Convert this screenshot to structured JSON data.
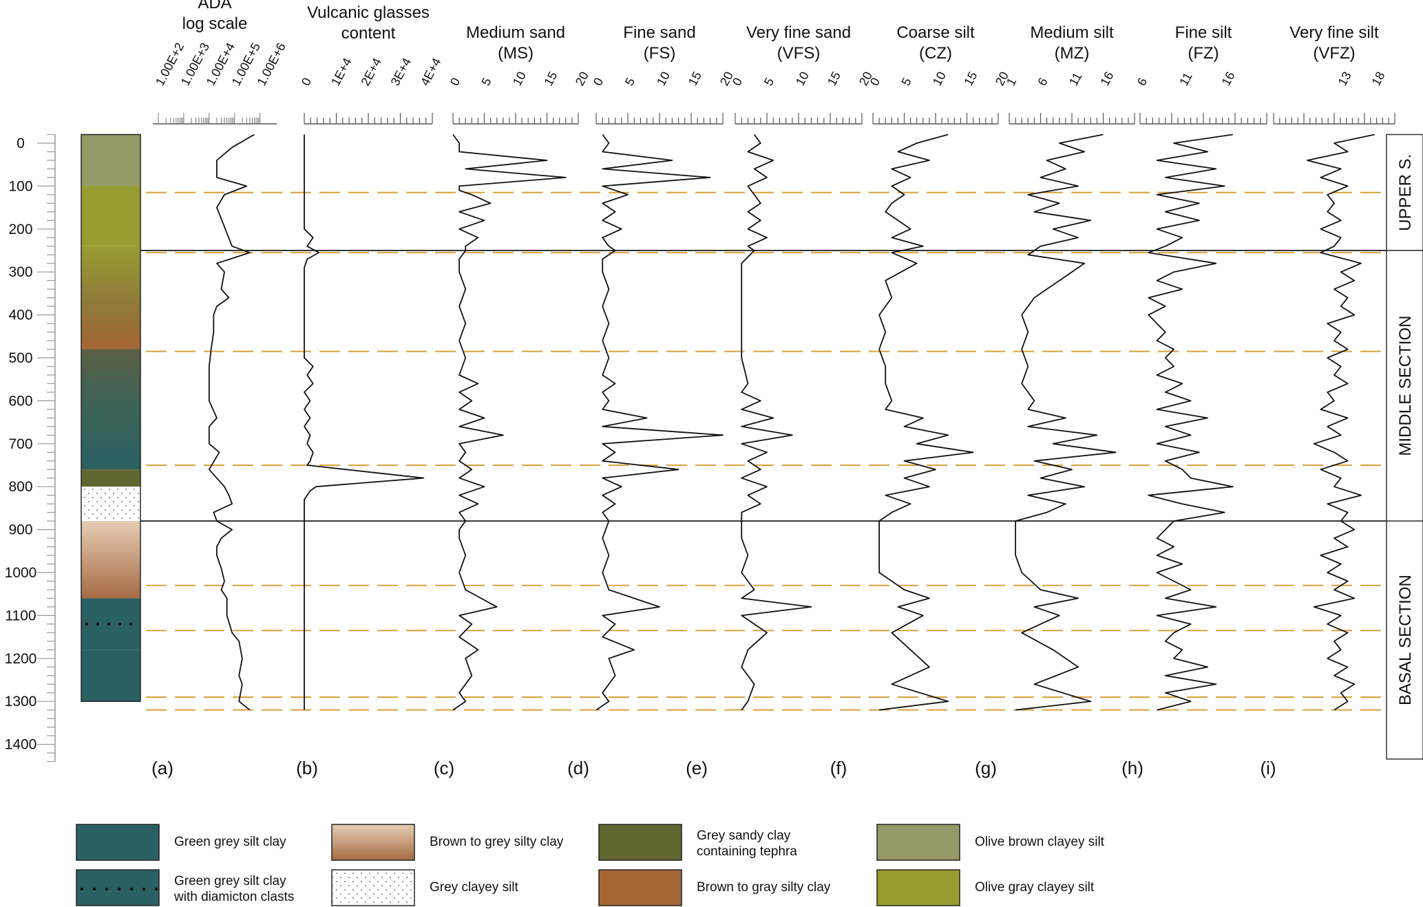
{
  "colors": {
    "green_grey": "#2b6063",
    "brown_grey_top": "#e6cdb4",
    "brown_grey_bottom": "#a66b45",
    "grey_sandy_tephra": "#646632",
    "brown_gray": "#a46534",
    "olive_brown": "#979968",
    "olive_gray": "#979d31",
    "guide_line": "#d9a13a",
    "section_line": "#333333"
  },
  "depth_axis": {
    "ticks": [
      "0",
      "100",
      "200",
      "300",
      "400",
      "500",
      "600",
      "700",
      "800",
      "900",
      "1000",
      "1100",
      "1200",
      "1300",
      "1400"
    ],
    "range": [
      -20,
      1440
    ]
  },
  "sections": [
    {
      "name": "UPPER S.",
      "top": -20,
      "bottom": 250
    },
    {
      "name": "MIDDLE SECTION",
      "top": 250,
      "bottom": 880
    },
    {
      "name": "BASAL SECTION",
      "top": 880,
      "bottom": 1440
    }
  ],
  "section_boundaries": [
    250,
    880
  ],
  "tephra_guides": [
    115,
    255,
    485,
    750,
    1030,
    1135,
    1290,
    1320
  ],
  "lithology_column": [
    {
      "top": -20,
      "bottom": 100,
      "unit": "olive_brown"
    },
    {
      "top": 100,
      "bottom": 240,
      "unit": "olive_gray"
    },
    {
      "top": 240,
      "bottom": 480,
      "unit": "olive_brown_gradient"
    },
    {
      "top": 480,
      "bottom": 760,
      "unit": "green_grey_gradient"
    },
    {
      "top": 760,
      "bottom": 800,
      "unit": "grey_sandy_tephra"
    },
    {
      "top": 800,
      "bottom": 880,
      "unit": "grey_clayey_silt"
    },
    {
      "top": 880,
      "bottom": 1060,
      "unit": "brown_grey"
    },
    {
      "top": 1060,
      "bottom": 1180,
      "unit": "green_grey_diamicton"
    },
    {
      "top": 1180,
      "bottom": 1300,
      "unit": "green_grey"
    }
  ],
  "panel_letters": [
    "(a)",
    "(b)",
    "(c)",
    "(d)",
    "(e)",
    "(f)",
    "(g)",
    "(h)",
    "(i)"
  ],
  "legend": [
    {
      "label": "Green grey silt clay",
      "swatch": "green_grey"
    },
    {
      "label": "Green grey silt clay\nwith diamicton clasts",
      "swatch": "green_grey_diamicton"
    },
    {
      "label": "Brown to grey silty clay",
      "swatch": "brown_grey"
    },
    {
      "label": "Grey clayey silt",
      "swatch": "grey_clayey_silt"
    },
    {
      "label": "Grey sandy clay\ncontaining tephra",
      "swatch": "grey_sandy_tephra"
    },
    {
      "label": "Brown to gray silty clay",
      "swatch": "brown_gray"
    },
    {
      "label": "Olive brown clayey silt",
      "swatch": "olive_brown"
    },
    {
      "label": "Olive gray clayey silt",
      "swatch": "olive_gray"
    }
  ],
  "chart_data": [
    {
      "type": "line",
      "id": "ada",
      "title": "ADA\nlog scale",
      "scale": "log",
      "ticks": [
        "1.00E+2",
        "1.00E+3",
        "1.00E+4",
        "1.00E+5",
        "1.00E+6"
      ],
      "xlim": [
        100,
        1000000
      ],
      "depth": [
        -20,
        10,
        40,
        80,
        100,
        120,
        150,
        240,
        255,
        280,
        300,
        340,
        360,
        380,
        400,
        440,
        480,
        520,
        560,
        600,
        640,
        660,
        700,
        720,
        760,
        780,
        800,
        820,
        840,
        860,
        880,
        900,
        920,
        940,
        960,
        990,
        1020,
        1040,
        1060,
        1100,
        1140,
        1160,
        1200,
        1240,
        1260,
        1300,
        1320
      ],
      "values": [
        600000,
        80000,
        20000,
        20000,
        300000,
        40000,
        20000,
        80000,
        400000,
        20000,
        40000,
        30000,
        60000,
        20000,
        15000,
        15000,
        12000,
        10000,
        10000,
        10000,
        20000,
        10000,
        10000,
        25000,
        10000,
        20000,
        40000,
        60000,
        80000,
        15000,
        20000,
        80000,
        30000,
        20000,
        20000,
        30000,
        40000,
        30000,
        50000,
        50000,
        80000,
        150000,
        200000,
        150000,
        200000,
        150000,
        400000
      ]
    },
    {
      "type": "line",
      "id": "glass",
      "title": "Vulcanic glasses\ncontent",
      "ticks": [
        "0",
        "1E+4",
        "2E+4",
        "3E+4",
        "4E+4"
      ],
      "xlim": [
        0,
        44000
      ],
      "depth": [
        -20,
        200,
        220,
        240,
        255,
        270,
        290,
        300,
        500,
        520,
        540,
        560,
        580,
        600,
        620,
        640,
        660,
        680,
        700,
        720,
        740,
        750,
        780,
        800,
        810,
        830,
        860,
        880,
        900,
        950,
        1000,
        1100,
        1200,
        1300,
        1320
      ],
      "values": [
        0,
        0,
        3000,
        1000,
        5000,
        1000,
        0,
        0,
        0,
        3000,
        1000,
        3000,
        0,
        2000,
        0,
        2000,
        0,
        2000,
        1000,
        3000,
        2000,
        1000,
        41000,
        4000,
        2000,
        0,
        0,
        0,
        0,
        0,
        0,
        0,
        0,
        0,
        0
      ]
    },
    {
      "type": "line",
      "id": "ms",
      "title": "Medium sand\n(MS)",
      "ticks": [
        "0",
        "5",
        "10",
        "15",
        "20"
      ],
      "xlim": [
        0,
        20
      ],
      "depth": [
        -20,
        0,
        20,
        40,
        60,
        80,
        100,
        110,
        120,
        140,
        160,
        180,
        200,
        220,
        240,
        250,
        270,
        300,
        340,
        380,
        420,
        460,
        500,
        540,
        560,
        580,
        600,
        620,
        640,
        660,
        680,
        700,
        720,
        740,
        760,
        780,
        800,
        820,
        840,
        860,
        880,
        900,
        920,
        960,
        1000,
        1040,
        1080,
        1100,
        1120,
        1150,
        1180,
        1200,
        1240,
        1280,
        1300,
        1320
      ],
      "values": [
        0,
        1,
        1,
        15,
        2,
        18,
        1,
        1,
        3,
        6,
        1,
        5,
        1,
        4,
        2,
        2,
        1,
        1,
        2,
        1,
        2,
        1,
        2,
        1,
        4,
        1,
        3,
        1,
        5,
        1,
        8,
        1,
        2,
        1,
        3,
        1,
        5,
        1,
        4,
        1,
        2,
        1,
        1,
        2,
        1,
        2,
        7,
        1,
        3,
        1,
        4,
        2,
        3,
        1,
        2,
        0
      ]
    },
    {
      "type": "line",
      "id": "fs",
      "title": "Fine sand\n(FS)",
      "ticks": [
        "0",
        "5",
        "10",
        "15",
        "20"
      ],
      "xlim": [
        0,
        20
      ],
      "depth": [
        -20,
        0,
        20,
        40,
        60,
        80,
        100,
        120,
        140,
        160,
        180,
        200,
        220,
        240,
        250,
        270,
        300,
        340,
        380,
        420,
        460,
        500,
        540,
        560,
        580,
        600,
        620,
        640,
        660,
        680,
        700,
        720,
        740,
        760,
        780,
        800,
        820,
        840,
        860,
        880,
        920,
        960,
        1000,
        1040,
        1080,
        1100,
        1120,
        1150,
        1180,
        1200,
        1240,
        1280,
        1300,
        1320
      ],
      "values": [
        1,
        2,
        1,
        12,
        1,
        18,
        1,
        5,
        1,
        3,
        1,
        4,
        1,
        2,
        3,
        1,
        1,
        2,
        1,
        2,
        1,
        2,
        1,
        3,
        1,
        2,
        1,
        8,
        1,
        20,
        1,
        3,
        1,
        13,
        1,
        4,
        1,
        3,
        1,
        2,
        1,
        2,
        1,
        2,
        10,
        1,
        3,
        1,
        6,
        2,
        3,
        1,
        2,
        0
      ]
    },
    {
      "type": "line",
      "id": "vfs",
      "title": "Very fine sand\n(VFS)",
      "ticks": [
        "0",
        "5",
        "10",
        "15",
        "20"
      ],
      "xlim": [
        0,
        20
      ],
      "depth": [
        -20,
        0,
        20,
        40,
        60,
        80,
        100,
        120,
        140,
        160,
        180,
        200,
        220,
        240,
        250,
        280,
        320,
        380,
        440,
        500,
        560,
        580,
        600,
        620,
        640,
        660,
        680,
        700,
        720,
        740,
        760,
        780,
        800,
        820,
        840,
        860,
        880,
        920,
        960,
        1000,
        1040,
        1060,
        1080,
        1100,
        1140,
        1180,
        1220,
        1260,
        1300,
        1320
      ],
      "values": [
        3,
        4,
        2,
        6,
        3,
        5,
        2,
        3,
        4,
        2,
        4,
        2,
        5,
        2,
        3,
        1,
        1,
        1,
        1,
        1,
        2,
        1,
        4,
        1,
        6,
        1,
        9,
        1,
        5,
        2,
        4,
        1,
        5,
        2,
        4,
        1,
        1,
        1,
        2,
        1,
        3,
        1,
        12,
        1,
        5,
        2,
        1,
        3,
        2,
        1
      ]
    },
    {
      "type": "line",
      "id": "cz",
      "title": "Coarse silt\n(CZ)",
      "ticks": [
        "0",
        "5",
        "10",
        "15",
        "20"
      ],
      "xlim": [
        0,
        20
      ],
      "depth": [
        -20,
        0,
        20,
        40,
        60,
        80,
        100,
        120,
        140,
        160,
        180,
        200,
        220,
        240,
        255,
        280,
        320,
        360,
        400,
        440,
        480,
        520,
        560,
        600,
        620,
        640,
        660,
        680,
        700,
        720,
        740,
        760,
        780,
        800,
        820,
        840,
        860,
        880,
        920,
        960,
        1000,
        1040,
        1060,
        1080,
        1100,
        1140,
        1180,
        1220,
        1260,
        1300,
        1320
      ],
      "values": [
        12,
        7,
        4,
        9,
        3,
        6,
        3,
        5,
        3,
        2,
        4,
        6,
        3,
        8,
        3,
        7,
        2,
        3,
        1,
        2,
        1,
        2,
        2,
        3,
        2,
        8,
        5,
        12,
        7,
        16,
        5,
        10,
        5,
        9,
        2,
        6,
        3,
        1,
        1,
        1,
        1,
        5,
        9,
        4,
        8,
        3,
        6,
        9,
        3,
        12,
        1
      ],
      "points_estimated": true
    },
    {
      "type": "line",
      "id": "mz",
      "title": "Medium silt\n(MZ)",
      "ticks": [
        "1",
        "6",
        "11",
        "16"
      ],
      "xlim": [
        1,
        21
      ],
      "depth": [
        -20,
        0,
        20,
        40,
        60,
        80,
        100,
        120,
        140,
        160,
        180,
        200,
        220,
        240,
        260,
        280,
        320,
        360,
        400,
        440,
        480,
        520,
        560,
        600,
        620,
        640,
        660,
        680,
        700,
        720,
        740,
        760,
        780,
        800,
        820,
        840,
        860,
        880,
        920,
        960,
        1000,
        1040,
        1060,
        1080,
        1100,
        1140,
        1180,
        1220,
        1260,
        1300,
        1320
      ],
      "values": [
        16,
        9,
        13,
        7,
        10,
        6,
        12,
        4,
        9,
        5,
        14,
        8,
        12,
        6,
        4,
        13,
        9,
        5,
        3,
        4,
        3,
        4,
        3,
        5,
        4,
        10,
        4,
        15,
        8,
        18,
        5,
        11,
        6,
        13,
        4,
        10,
        7,
        2,
        2,
        2,
        3,
        6,
        12,
        5,
        9,
        3,
        8,
        12,
        5,
        14,
        2
      ]
    },
    {
      "type": "line",
      "id": "fz",
      "title": "Fine silt\n(FZ)",
      "ticks": [
        "6",
        "11",
        "16"
      ],
      "xlim": [
        6,
        21
      ],
      "depth": [
        -20,
        0,
        20,
        40,
        60,
        80,
        100,
        120,
        140,
        160,
        180,
        200,
        220,
        240,
        255,
        280,
        300,
        320,
        340,
        360,
        380,
        400,
        420,
        440,
        460,
        480,
        500,
        520,
        540,
        560,
        580,
        600,
        620,
        640,
        660,
        680,
        700,
        720,
        740,
        760,
        780,
        800,
        820,
        840,
        860,
        880,
        900,
        920,
        940,
        960,
        980,
        1000,
        1020,
        1040,
        1060,
        1080,
        1100,
        1120,
        1140,
        1160,
        1180,
        1200,
        1220,
        1240,
        1260,
        1280,
        1300,
        1320
      ],
      "values": [
        17,
        10,
        14,
        8,
        15,
        9,
        16,
        8,
        13,
        9,
        13,
        8,
        11,
        9,
        7,
        15,
        10,
        8,
        11,
        7,
        9,
        7,
        8,
        9,
        8,
        10,
        9,
        10,
        8,
        11,
        9,
        12,
        8,
        14,
        9,
        12,
        8,
        13,
        9,
        11,
        12,
        17,
        7,
        11,
        16,
        10,
        9,
        8,
        10,
        8,
        11,
        8,
        10,
        12,
        9,
        15,
        8,
        12,
        10,
        9,
        11,
        10,
        14,
        9,
        15,
        9,
        12,
        8
      ]
    },
    {
      "type": "line",
      "id": "vfz",
      "title": "Very fine silt\n(VFZ)",
      "ticks": [
        "13",
        "18"
      ],
      "xlim": [
        3,
        21
      ],
      "depth": [
        -20,
        0,
        20,
        40,
        60,
        80,
        100,
        120,
        140,
        160,
        180,
        200,
        220,
        240,
        255,
        280,
        300,
        320,
        340,
        360,
        380,
        400,
        420,
        440,
        460,
        480,
        500,
        520,
        540,
        560,
        580,
        600,
        620,
        640,
        660,
        680,
        700,
        720,
        740,
        760,
        780,
        800,
        820,
        840,
        860,
        880,
        900,
        920,
        940,
        960,
        980,
        1000,
        1020,
        1040,
        1060,
        1080,
        1100,
        1120,
        1140,
        1160,
        1180,
        1200,
        1220,
        1240,
        1260,
        1280,
        1300,
        1320
      ],
      "values": [
        18,
        12,
        14,
        8,
        13,
        10,
        14,
        11,
        12,
        11,
        13,
        10,
        13,
        12,
        10,
        16,
        13,
        15,
        12,
        14,
        13,
        15,
        11,
        13,
        12,
        14,
        11,
        13,
        12,
        14,
        11,
        12,
        10,
        14,
        11,
        13,
        9,
        12,
        14,
        10,
        13,
        12,
        16,
        11,
        14,
        13,
        15,
        12,
        14,
        10,
        13,
        11,
        14,
        12,
        15,
        9,
        13,
        11,
        14,
        12,
        13,
        11,
        14,
        12,
        15,
        13,
        14,
        12
      ]
    }
  ]
}
